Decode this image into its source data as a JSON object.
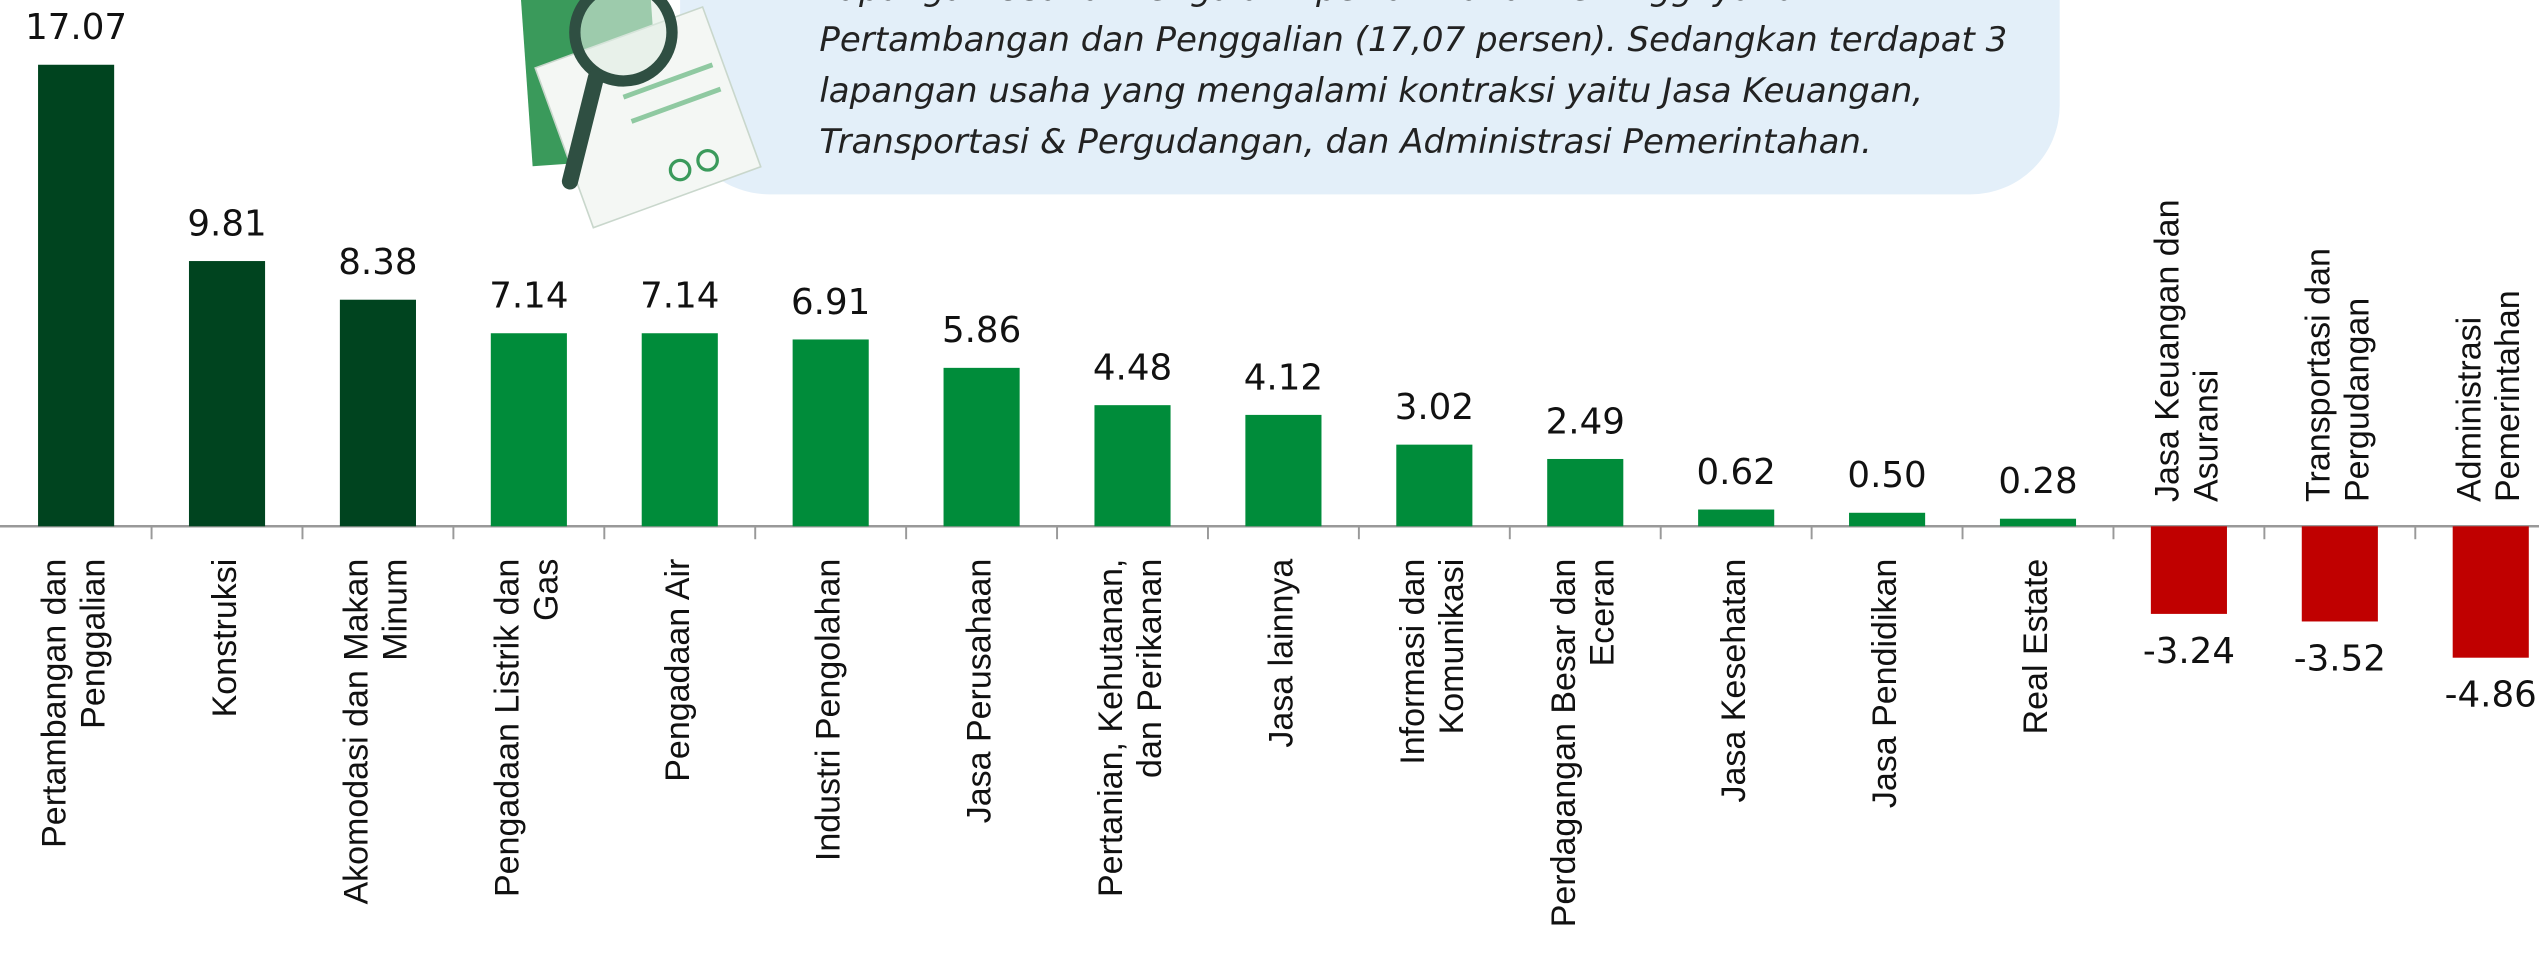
{
  "chart_data": {
    "type": "bar",
    "annotation": [
      "Lapangan Usaha mengalami pertambahan tertinggi yaitu",
      "Pertambangan dan Penggalian (17,07 persen). Sedangkan terdapat 3",
      "lapangan usaha yang mengalami kontraksi yaitu Jasa Keuangan,",
      "Transportasi & Pergudangan, dan Administrasi Pemerintahan."
    ],
    "categories": [
      "Pertambangan dan Penggalian",
      "Konstruksi",
      "Akomodasi dan Makan Minum",
      "Pengadaan Listrik dan Gas",
      "Pengadaan Air",
      "Industri Pengolahan",
      "Jasa Perusahaan",
      "Pertanian, Kehutanan, dan Perikanan",
      "Jasa lainnya",
      "Informasi dan Komunikasi",
      "Perdagangan Besar dan Eceran",
      "Jasa Kesehatan",
      "Jasa Pendidikan",
      "Real Estate",
      "Jasa Keuangan dan Asuransi",
      "Transportasi dan Pergudangan",
      "Administrasi Pemerintahan"
    ],
    "values": [
      17.07,
      9.81,
      8.38,
      7.14,
      7.14,
      6.91,
      5.86,
      4.48,
      4.12,
      3.02,
      2.49,
      0.62,
      0.5,
      0.28,
      -3.24,
      -3.52,
      -4.86
    ],
    "value_labels": [
      "17.07",
      "9.81",
      "8.38",
      "7.14",
      "7.14",
      "6.91",
      "5.86",
      "4.48",
      "4.12",
      "3.02",
      "2.49",
      "0.62",
      "0.50",
      "0.28",
      "-3.24",
      "-3.52",
      "-4.86"
    ],
    "colors": [
      "#00441f",
      "#00441f",
      "#00441f",
      "#008c3a",
      "#008c3a",
      "#008c3a",
      "#008c3a",
      "#008c3a",
      "#008c3a",
      "#008c3a",
      "#008c3a",
      "#008c3a",
      "#008c3a",
      "#008c3a",
      "#c00000",
      "#c00000",
      "#c00000"
    ],
    "ylim": [
      -5,
      17.5
    ]
  }
}
